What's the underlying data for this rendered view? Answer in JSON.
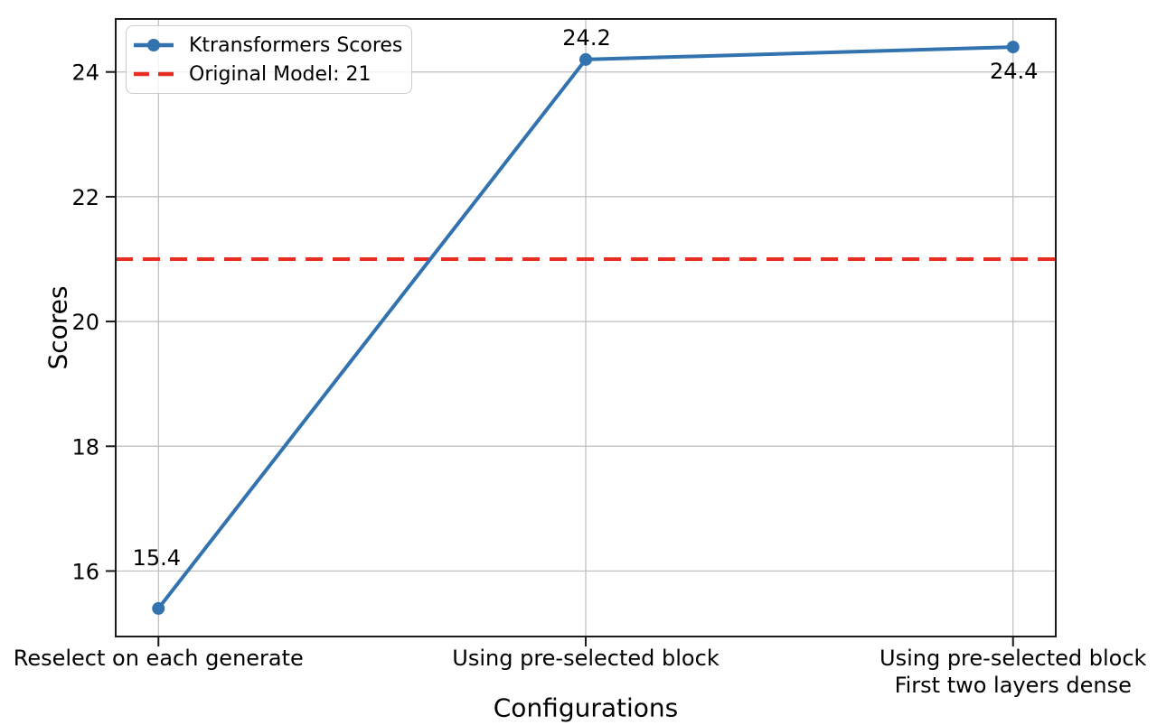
{
  "chart_data": {
    "type": "line",
    "title": "",
    "xlabel": "Configurations",
    "ylabel": "Scores",
    "categories": [
      "Reselect on each generate",
      "Using pre-selected block",
      "Using pre-selected block\nFirst two layers dense"
    ],
    "series": [
      {
        "name": "Ktransformers Scores",
        "values": [
          15.4,
          24.2,
          24.4
        ],
        "color": "#3273af",
        "marker": "circle",
        "line_style": "solid"
      }
    ],
    "reference_line": {
      "label": "Original Model: 21",
      "value": 21,
      "color": "#e82d23",
      "line_style": "dashed"
    },
    "point_labels": [
      "15.4",
      "24.2",
      "24.4"
    ],
    "yticks": [
      16,
      18,
      20,
      22,
      24
    ],
    "ylim": [
      14.95,
      24.85
    ],
    "grid": true,
    "grid_color": "#bcbcbc",
    "spine_color": "#1a1a1a",
    "legend_position": "upper-left"
  }
}
